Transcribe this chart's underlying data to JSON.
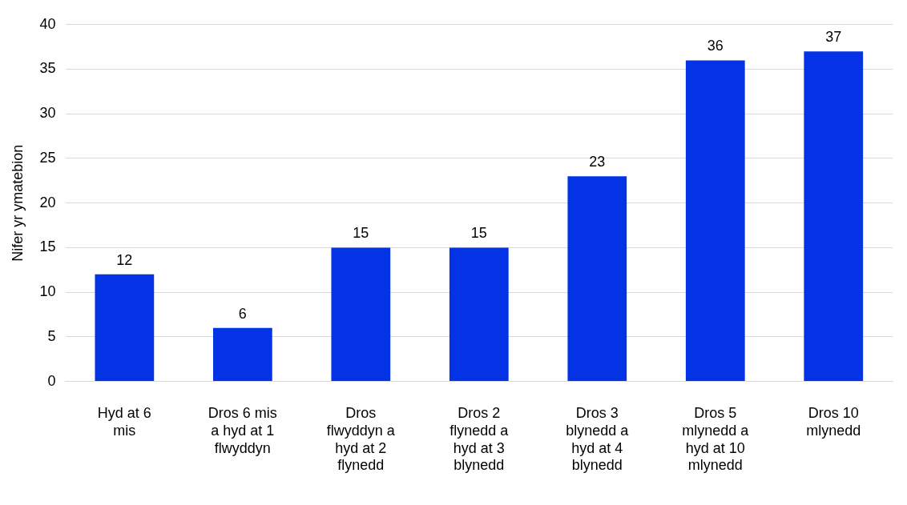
{
  "chart_data": {
    "type": "bar",
    "ylabel": "Nifer yr ymatebion",
    "categories": [
      "Hyd at 6 mis",
      "Dros 6 mis a hyd at 1 flwyddyn",
      "Dros flwyddyn a hyd at 2 flynedd",
      "Dros 2 flynedd a hyd at 3 blynedd",
      "Dros 3 blynedd a hyd at 4 blynedd",
      "Dros 5 mlynedd a hyd at 10 mlynedd",
      "Dros 10 mlynedd"
    ],
    "values": [
      12,
      6,
      15,
      15,
      23,
      36,
      37
    ],
    "color": "#0433e6",
    "ylim": [
      0,
      40
    ],
    "yticks": [
      0,
      5,
      10,
      15,
      20,
      25,
      30,
      35,
      40
    ],
    "grid": "y",
    "data_labels": true,
    "legend": false
  }
}
